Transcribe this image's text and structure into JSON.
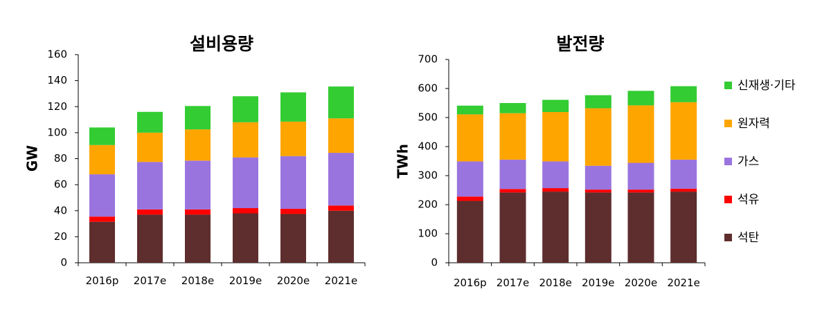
{
  "colors": {
    "석탄": "#5e2d2d",
    "석유": "#ff0000",
    "가스": "#9a74de",
    "원자력": "#ffa500",
    "신재생·기타": "#33cc33"
  },
  "legend": {
    "items": [
      "신재생·기타",
      "원자력",
      "가스",
      "석유",
      "석탄"
    ]
  },
  "chart_data": [
    {
      "type": "bar",
      "stacked": true,
      "title": "설비용량",
      "xlabel": "",
      "ylabel": "GW",
      "ylim": [
        0,
        160
      ],
      "yticks": [
        0,
        20,
        40,
        60,
        80,
        100,
        120,
        140,
        160
      ],
      "categories": [
        "2016p",
        "2017e",
        "2018e",
        "2019e",
        "2020e",
        "2021e"
      ],
      "series": [
        {
          "name": "석탄",
          "values": [
            31.5,
            37,
            37,
            38,
            37.5,
            40
          ]
        },
        {
          "name": "석유",
          "values": [
            4,
            4,
            4,
            4,
            4,
            4
          ]
        },
        {
          "name": "가스",
          "values": [
            32.5,
            36.5,
            37.5,
            39,
            40.5,
            40.5
          ]
        },
        {
          "name": "원자력",
          "values": [
            22.5,
            22.5,
            24,
            27,
            26.5,
            26.5
          ]
        },
        {
          "name": "신재생·기타",
          "values": [
            13.5,
            16,
            18,
            20,
            22.5,
            24.5
          ]
        }
      ]
    },
    {
      "type": "bar",
      "stacked": true,
      "title": "발전량",
      "xlabel": "",
      "ylabel": "TWh",
      "ylim": [
        0,
        700
      ],
      "yticks": [
        0,
        100,
        200,
        300,
        400,
        500,
        600,
        700
      ],
      "categories": [
        "2016p",
        "2017e",
        "2018e",
        "2019e",
        "2020e",
        "2021e"
      ],
      "series": [
        {
          "name": "석탄",
          "values": [
            213,
            242,
            245,
            242,
            242,
            245
          ]
        },
        {
          "name": "석유",
          "values": [
            15,
            12,
            12,
            10,
            10,
            10
          ]
        },
        {
          "name": "가스",
          "values": [
            121,
            101,
            92,
            82,
            92,
            100
          ]
        },
        {
          "name": "원자력",
          "values": [
            162,
            160,
            170,
            198,
            198,
            198
          ]
        },
        {
          "name": "신재생·기타",
          "values": [
            30,
            35,
            42,
            45,
            50,
            55
          ]
        }
      ]
    }
  ]
}
